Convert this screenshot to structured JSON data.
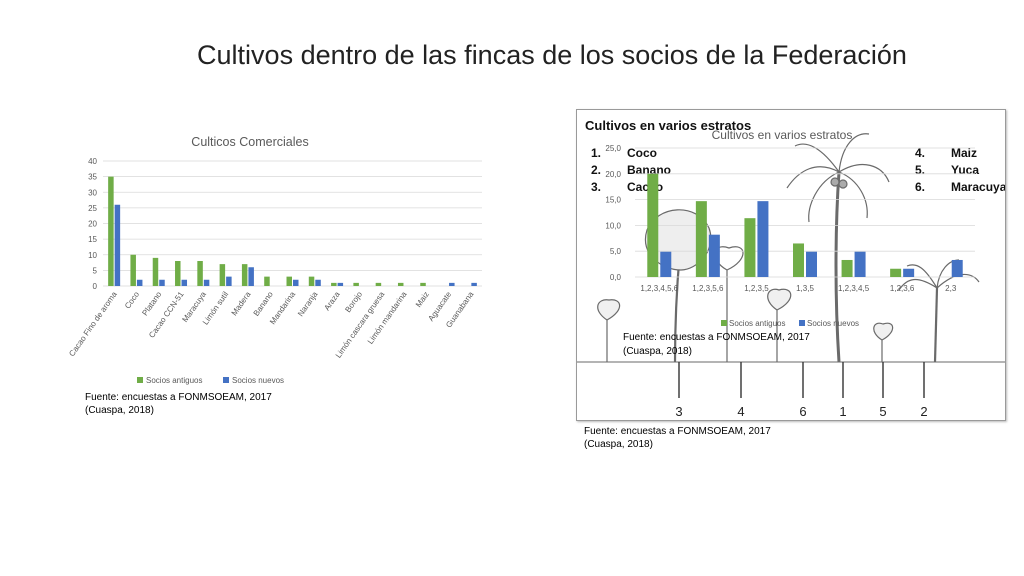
{
  "slide": {
    "title": "Cultivos dentro de las fincas de los socios de la Federación"
  },
  "source_left": {
    "line1": "Fuente: encuestas a FONMSOEAM, 2017",
    "line2": "(Cuaspa, 2018)"
  },
  "source_right": {
    "line1": "Fuente: encuestas a FONMSOEAM, 2017",
    "line2": "(Cuaspa, 2018)"
  },
  "source_inner": {
    "line1": "Fuente: encuestas a FONMSOEAM, 2017",
    "line2": "(Cuaspa, 2018)"
  },
  "figure": {
    "heading": "Cultivos en varios estratos",
    "key": [
      {
        "num": "1.",
        "name": "Coco"
      },
      {
        "num": "2.",
        "name": "Banano"
      },
      {
        "num": "3.",
        "name": "Cacao"
      },
      {
        "num": "4.",
        "name": "Maiz"
      },
      {
        "num": "5.",
        "name": "Yuca"
      },
      {
        "num": "6.",
        "name": "Maracuya"
      }
    ],
    "bottom_numbers": [
      "3",
      "4",
      "6",
      "1",
      "5",
      "2"
    ]
  },
  "colors": {
    "antiguos": "#70ad47",
    "nuevos": "#4472c4",
    "grid": "#d9d9d9",
    "axis_text": "#595959"
  },
  "chart_data": [
    {
      "type": "bar",
      "title": "Culticos Comerciales",
      "categories": [
        "Cacao Fino de aroma",
        "Coco",
        "Platano",
        "Cacao CCN-51",
        "Maracuya",
        "Limón sutil",
        "Madera",
        "Banano",
        "Mandarina",
        "Naranja",
        "Araza",
        "Borojo",
        "Limón cascara gruesa",
        "Limón mandarina",
        "Maiz",
        "Aguacate",
        "Guanabana"
      ],
      "series": [
        {
          "name": "Socios antiguos",
          "values": [
            35,
            10,
            9,
            8,
            8,
            7,
            7,
            3,
            3,
            3,
            1,
            1,
            1,
            1,
            1,
            0,
            0
          ]
        },
        {
          "name": "Socios nuevos",
          "values": [
            26,
            2,
            2,
            2,
            2,
            3,
            6,
            0,
            2,
            2,
            1,
            0,
            0,
            0,
            0,
            1,
            1
          ]
        }
      ],
      "ylim": [
        0,
        40
      ],
      "yticks": [
        0,
        5,
        10,
        15,
        20,
        25,
        30,
        35,
        40
      ],
      "legend": "bottom"
    },
    {
      "type": "bar",
      "title": "Cultivos en varios estratos",
      "categories": [
        "1,2,3,4,5,6",
        "1,2,3,5,6",
        "1,2,3,5",
        "1,3,5",
        "1,2,3,4,5",
        "1,2,3,6",
        "2,3"
      ],
      "series": [
        {
          "name": "Socios antiguos",
          "values": [
            20,
            14.7,
            11.4,
            6.5,
            3.3,
            1.6,
            0
          ]
        },
        {
          "name": "Socios nuevos",
          "values": [
            4.9,
            8.2,
            14.7,
            4.9,
            4.9,
            1.6,
            3.3
          ]
        }
      ],
      "ylim": [
        0,
        25
      ],
      "yticks": [
        "0,0",
        "5,0",
        "10,0",
        "15,0",
        "20,0",
        "25,0"
      ],
      "legend": "bottom"
    }
  ]
}
